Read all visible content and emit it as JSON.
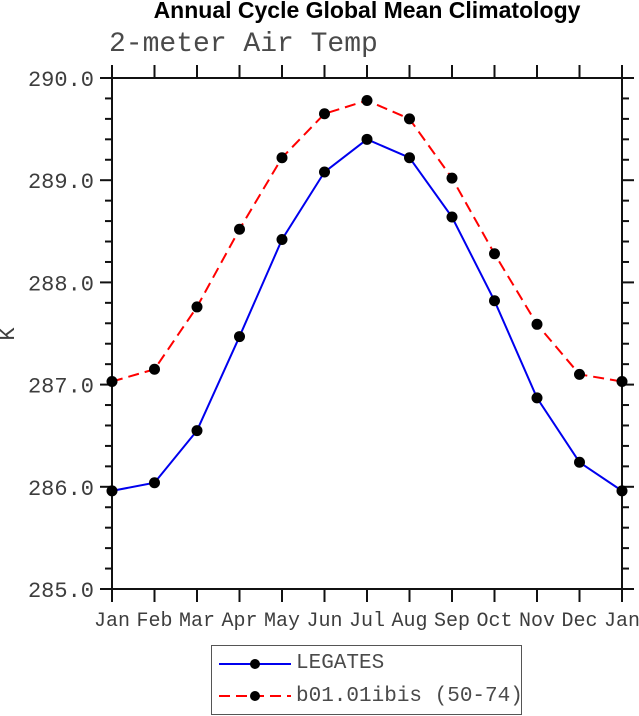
{
  "chart_data": {
    "type": "line",
    "title": "Annual Cycle Global Mean Climatology",
    "subtitle": "2-meter Air Temp",
    "ylabel": "K",
    "ylim": [
      285.0,
      290.0
    ],
    "ytick_interval": 1.0,
    "yminor_interval": 0.2,
    "ytick_labels": [
      "285.0",
      "286.0",
      "287.0",
      "288.0",
      "289.0",
      "290.0"
    ],
    "categories": [
      "Jan",
      "Feb",
      "Mar",
      "Apr",
      "May",
      "Jun",
      "Jul",
      "Aug",
      "Sep",
      "Oct",
      "Nov",
      "Dec",
      "Jan"
    ],
    "series": [
      {
        "name": "LEGATES",
        "color": "#0000ee",
        "style": "solid",
        "dash": "",
        "marker": "circle",
        "marker_color": "#000000",
        "values": [
          285.96,
          286.04,
          286.55,
          287.47,
          288.42,
          289.08,
          289.4,
          289.22,
          288.64,
          287.82,
          286.87,
          286.24,
          285.96
        ]
      },
      {
        "name": "b01.01ibis (50-74)",
        "color": "#ff0000",
        "style": "dashed",
        "dash": "11 6",
        "marker": "circle",
        "marker_color": "#000000",
        "values": [
          287.03,
          287.15,
          287.76,
          288.52,
          289.22,
          289.65,
          289.78,
          289.6,
          289.02,
          288.28,
          287.59,
          287.1,
          287.03
        ]
      }
    ],
    "legend_position": "bottom",
    "grid": false,
    "axis_color": "#111111"
  }
}
